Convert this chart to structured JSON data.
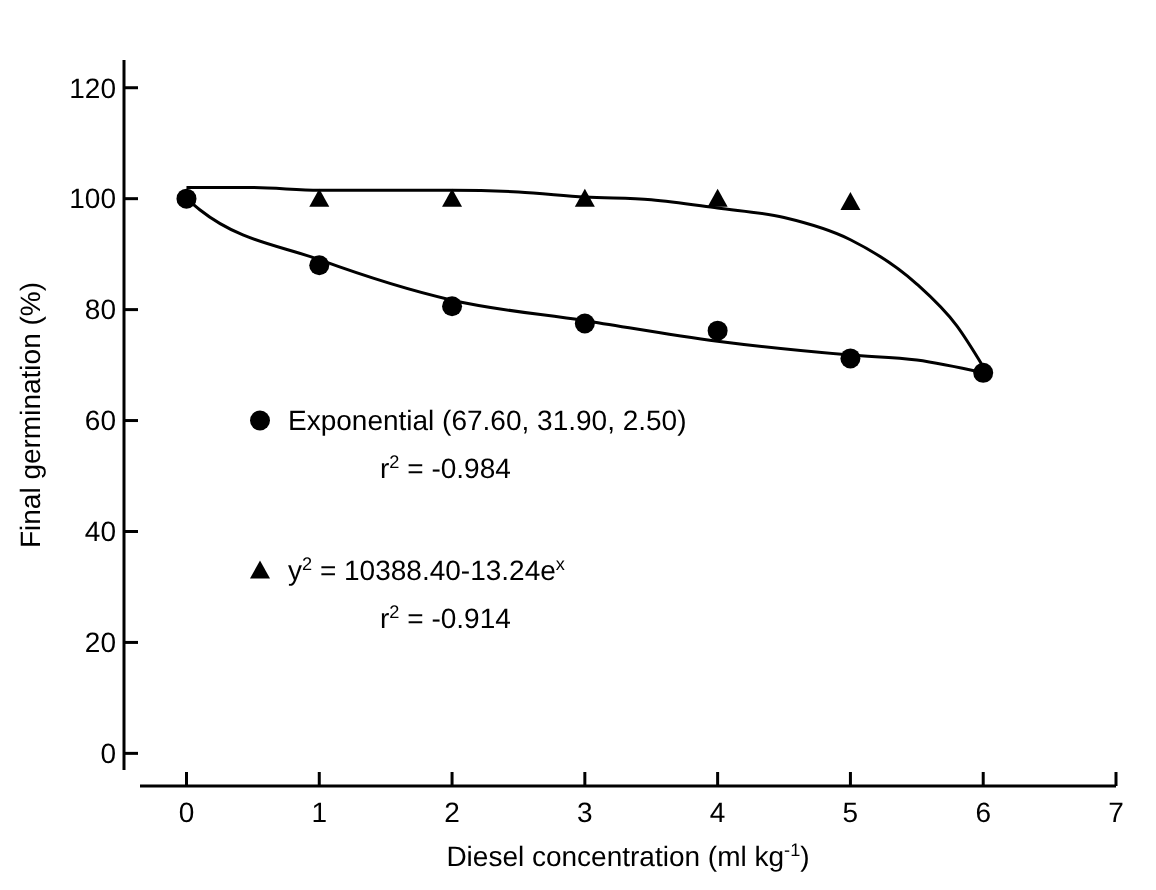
{
  "chart_data": {
    "type": "scatter",
    "xlabel": "Diesel concentration (ml kg$^{-1}$)",
    "ylabel": "Final germination (%)",
    "x": [
      0,
      1,
      2,
      3,
      4,
      5,
      6
    ],
    "xlim": [
      -0.35,
      7
    ],
    "xticks": [
      0,
      1,
      2,
      3,
      4,
      5,
      6,
      7
    ],
    "ylim": [
      -3,
      125
    ],
    "yticks": [
      0,
      20,
      40,
      60,
      80,
      100,
      120
    ],
    "grid": false,
    "legend": "left",
    "series": [
      {
        "name": "Exponential (67.60, 31.90, 2.50)",
        "marker": "circle",
        "color": "#000000",
        "values": [
          100,
          88,
          80.6,
          77.5,
          76.2,
          71.2,
          68.6
        ]
      },
      {
        "name": "y$^{2}$ = 10388.40-13.24e$^{x}$",
        "marker": "triangle",
        "color": "#000000",
        "values": [
          null,
          100,
          100,
          100,
          100,
          99.4,
          null
        ]
      },
      {
        "type": "line",
        "marker": "none",
        "color": "#000000",
        "x": [
          0,
          0.1,
          1,
          2,
          3,
          4,
          5,
          5.5,
          6
        ],
        "values": [
          100,
          98,
          89,
          81.7,
          78,
          74.3,
          71.8,
          70.9,
          68.6
        ]
      },
      {
        "type": "line",
        "marker": "none",
        "color": "#000000",
        "x": [
          0,
          0.5,
          1,
          2,
          2.5,
          3,
          3.5,
          4,
          4.5,
          5,
          5.5,
          5.8,
          6
        ],
        "values": [
          102,
          102,
          101.5,
          101.5,
          101.2,
          100.3,
          99.8,
          98.3,
          96.6,
          92.6,
          84.6,
          77.1,
          69.7
        ]
      }
    ],
    "annotations": [
      "r$^{2}$ = -0.984",
      "r$^{2}$ = -0.914"
    ]
  }
}
